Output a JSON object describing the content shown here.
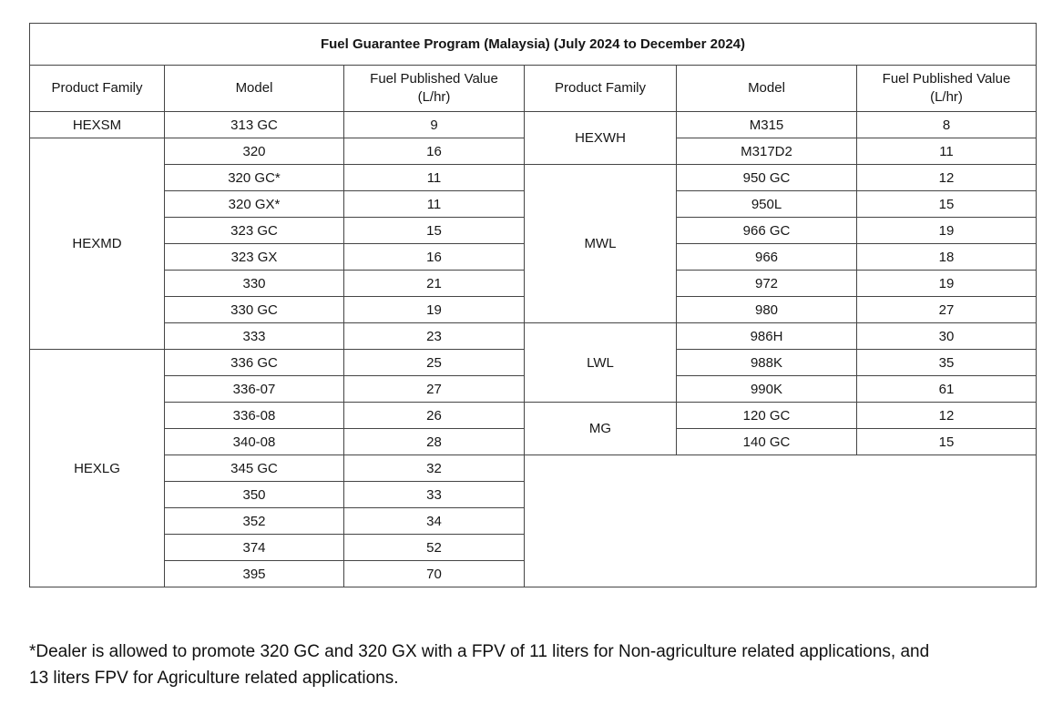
{
  "title": "Fuel Guarantee Program (Malaysia) (July 2024 to December 2024)",
  "columns": {
    "product_family": "Product Family",
    "model": "Model",
    "fpv": "Fuel Published Value\n(L/hr)"
  },
  "left": {
    "groups": [
      {
        "family": "HEXSM",
        "rows": [
          {
            "model": "313 GC",
            "value": "9"
          }
        ]
      },
      {
        "family": "HEXMD",
        "rows": [
          {
            "model": "320",
            "value": "16"
          },
          {
            "model": "320 GC*",
            "value": "11"
          },
          {
            "model": "320 GX*",
            "value": "11"
          },
          {
            "model": "323 GC",
            "value": "15"
          },
          {
            "model": "323 GX",
            "value": "16"
          },
          {
            "model": "330",
            "value": "21"
          },
          {
            "model": "330 GC",
            "value": "19"
          },
          {
            "model": "333",
            "value": "23"
          }
        ]
      },
      {
        "family": "HEXLG",
        "rows": [
          {
            "model": "336 GC",
            "value": "25"
          },
          {
            "model": "336-07",
            "value": "27"
          },
          {
            "model": "336-08",
            "value": "26"
          },
          {
            "model": "340-08",
            "value": "28"
          },
          {
            "model": "345 GC",
            "value": "32"
          },
          {
            "model": "350",
            "value": "33"
          },
          {
            "model": "352",
            "value": "34"
          },
          {
            "model": "374",
            "value": "52"
          },
          {
            "model": "395",
            "value": "70"
          }
        ]
      }
    ]
  },
  "right": {
    "groups": [
      {
        "family": "HEXWH",
        "rows": [
          {
            "model": "M315",
            "value": "8"
          },
          {
            "model": "M317D2",
            "value": "11"
          }
        ]
      },
      {
        "family": "MWL",
        "rows": [
          {
            "model": "950 GC",
            "value": "12"
          },
          {
            "model": "950L",
            "value": "15"
          },
          {
            "model": "966 GC",
            "value": "19"
          },
          {
            "model": "966",
            "value": "18"
          },
          {
            "model": "972",
            "value": "19"
          },
          {
            "model": "980",
            "value": "27"
          }
        ]
      },
      {
        "family": "LWL",
        "rows": [
          {
            "model": "986H",
            "value": "30"
          },
          {
            "model": "988K",
            "value": "35"
          },
          {
            "model": "990K",
            "value": "61"
          }
        ]
      },
      {
        "family": "MG",
        "rows": [
          {
            "model": "120 GC",
            "value": "12"
          },
          {
            "model": "140 GC",
            "value": "15"
          }
        ]
      }
    ]
  },
  "footnote": "*Dealer is allowed to promote 320 GC and 320 GX with a FPV of 11 liters for Non-agriculture related applications, and\n13 liters FPV for Agriculture related applications.",
  "colors": {
    "stripe": "#e2e6e9",
    "header_bg": "#e2e6e9",
    "border": "#454545",
    "background": "#ffffff"
  }
}
